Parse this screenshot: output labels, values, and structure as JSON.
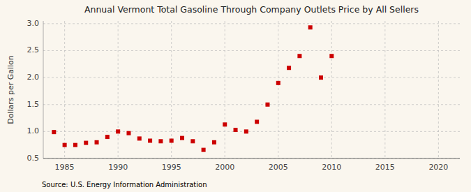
{
  "chart_data": {
    "type": "scatter",
    "title": "Annual Vermont Total Gasoline Through Company Outlets Price by All Sellers",
    "ylabel": "Dollars per Gallon",
    "source": "Source: U.S. Energy Information Administration",
    "x": [
      1984,
      1985,
      1986,
      1987,
      1988,
      1989,
      1990,
      1991,
      1992,
      1993,
      1994,
      1995,
      1996,
      1997,
      1998,
      1999,
      2000,
      2001,
      2002,
      2003,
      2004,
      2005,
      2006,
      2007,
      2008,
      2009,
      2010
    ],
    "values": [
      0.99,
      0.75,
      0.75,
      0.79,
      0.8,
      0.9,
      1.0,
      0.97,
      0.87,
      0.83,
      0.82,
      0.83,
      0.88,
      0.82,
      0.66,
      0.8,
      1.13,
      1.03,
      1.0,
      1.18,
      1.5,
      1.9,
      2.18,
      2.4,
      2.93,
      2.0,
      2.4
    ],
    "color": "#cc0000",
    "marker": "square",
    "xlim": [
      1983,
      2022
    ],
    "ylim": [
      0.5,
      3.05
    ],
    "xticks": [
      1985,
      1990,
      1995,
      2000,
      2005,
      2010,
      2015,
      2020
    ],
    "yticks": [
      0.5,
      {
        "value": 1.0,
        "label": "1.0"
      },
      1.5,
      {
        "value": 2.0,
        "label": "2.0"
      },
      2.5,
      {
        "value": 3.0,
        "label": "3.0"
      }
    ],
    "grid": true
  }
}
